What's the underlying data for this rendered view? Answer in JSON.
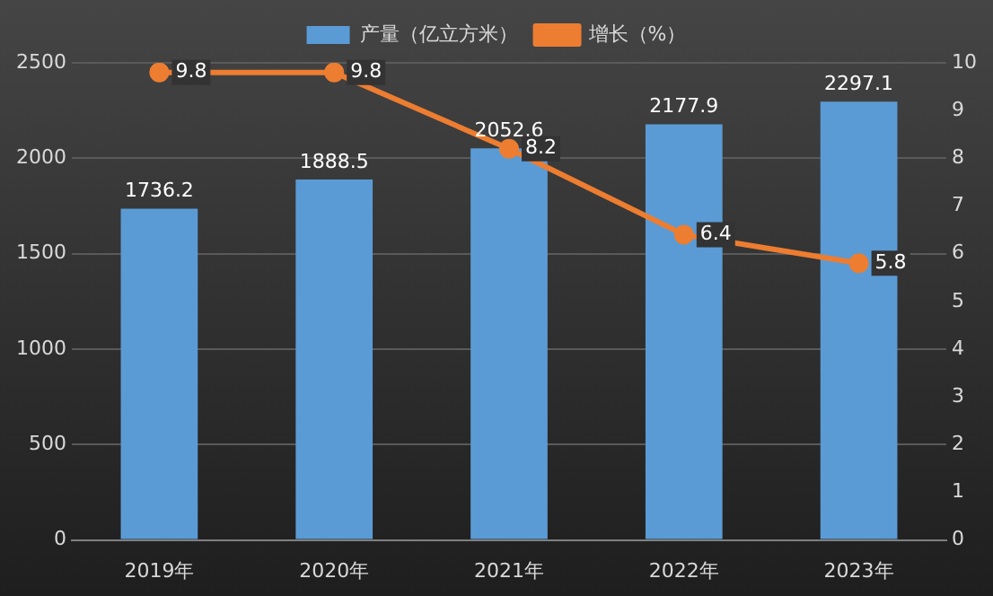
{
  "chart_data": {
    "type": "bar",
    "categories": [
      "2019年",
      "2020年",
      "2021年",
      "2022年",
      "2023年"
    ],
    "series": [
      {
        "name": "产量（亿立方米）",
        "color": "#5b9bd5",
        "values": [
          1736.2,
          1888.5,
          2052.6,
          2177.9,
          2297.1
        ]
      },
      {
        "name": "增长（%）",
        "type": "line",
        "axis": "y2",
        "color": "#ed7d31",
        "values": [
          9.8,
          9.8,
          8.2,
          6.4,
          5.8
        ]
      }
    ],
    "ylim": [
      0,
      2500
    ],
    "yticks": [
      0,
      500,
      1000,
      1500,
      2000,
      2500
    ],
    "y2lim": [
      0,
      10
    ],
    "y2ticks": [
      0,
      1,
      2,
      3,
      4,
      5,
      6,
      7,
      8,
      9,
      10
    ],
    "grid": "y",
    "legend": "top",
    "marker": "circle",
    "data_labels": true
  }
}
